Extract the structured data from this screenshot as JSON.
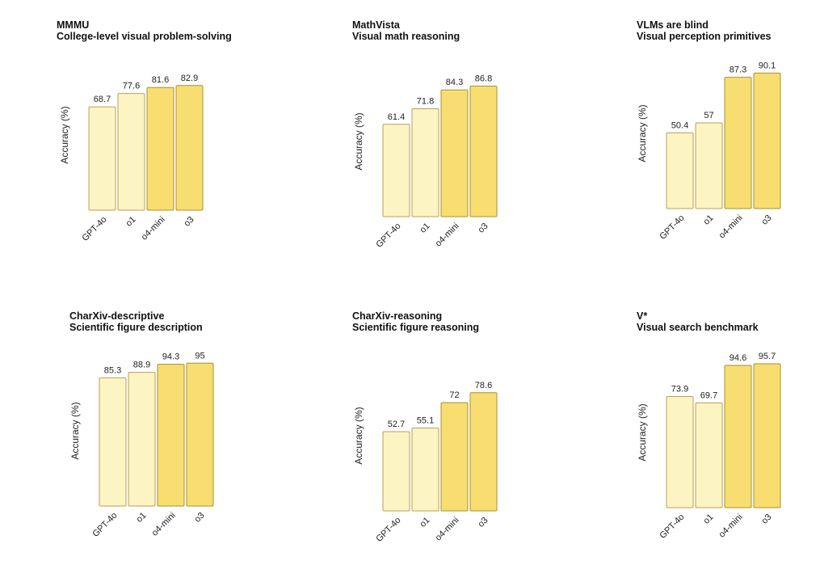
{
  "colors": {
    "GPT-4o": {
      "fill": "#fdf4c4",
      "stroke": "#b8a055"
    },
    "o1": {
      "fill": "#fdf4c4",
      "stroke": "#b8a055"
    },
    "o4-mini": {
      "fill": "#f8de70",
      "stroke": "#a8902f"
    },
    "o3": {
      "fill": "#f8de70",
      "stroke": "#a8902f"
    }
  },
  "chart_data": [
    {
      "type": "bar",
      "title": "MMMU",
      "subtitle": "College-level visual problem-solving",
      "ylabel": "Accuracy (%)",
      "categories": [
        "GPT-4o",
        "o1",
        "o4-mini",
        "o3"
      ],
      "values": [
        68.7,
        77.6,
        81.6,
        82.9
      ],
      "value_labels": [
        "68.7",
        "77.6",
        "81.6",
        "82.9"
      ],
      "ylim": [
        0,
        100
      ]
    },
    {
      "type": "bar",
      "title": "MathVista",
      "subtitle": "Visual math reasoning",
      "ylabel": "Accuracy (%)",
      "categories": [
        "GPT-4o",
        "o1",
        "o4-mini",
        "o3"
      ],
      "values": [
        61.4,
        71.8,
        84.3,
        86.8
      ],
      "value_labels": [
        "61.4",
        "71.8",
        "84.3",
        "86.8"
      ],
      "ylim": [
        0,
        100
      ]
    },
    {
      "type": "bar",
      "title": "VLMs are blind",
      "subtitle": "Visual perception primitives",
      "ylabel": "Accuracy (%)",
      "categories": [
        "GPT-4o",
        "o1",
        "o4-mini",
        "o3"
      ],
      "values": [
        50.4,
        57,
        87.3,
        90.1
      ],
      "value_labels": [
        "50.4",
        "57",
        "87.3",
        "90.1"
      ],
      "ylim": [
        0,
        100
      ]
    },
    {
      "type": "bar",
      "title": "CharXiv-descriptive",
      "subtitle": "Scientific figure description",
      "ylabel": "Accuracy (%)",
      "categories": [
        "GPT-4o",
        "o1",
        "o4-mini",
        "o3"
      ],
      "values": [
        85.3,
        88.9,
        94.3,
        95
      ],
      "value_labels": [
        "85.3",
        "88.9",
        "94.3",
        "95"
      ],
      "ylim": [
        0,
        100
      ]
    },
    {
      "type": "bar",
      "title": "CharXiv-reasoning",
      "subtitle": "Scientific figure reasoning",
      "ylabel": "Accuracy (%)",
      "categories": [
        "GPT-4o",
        "o1",
        "o4-mini",
        "o3"
      ],
      "values": [
        52.7,
        55.1,
        72,
        78.6
      ],
      "value_labels": [
        "52.7",
        "55.1",
        "72",
        "78.6"
      ],
      "ylim": [
        0,
        100
      ]
    },
    {
      "type": "bar",
      "title": "V*",
      "subtitle": "Visual search benchmark",
      "ylabel": "Accuracy (%)",
      "categories": [
        "GPT-4o",
        "o1",
        "o4-mini",
        "o3"
      ],
      "values": [
        73.9,
        69.7,
        94.6,
        95.7
      ],
      "value_labels": [
        "73.9",
        "69.7",
        "94.6",
        "95.7"
      ],
      "ylim": [
        0,
        100
      ]
    }
  ]
}
